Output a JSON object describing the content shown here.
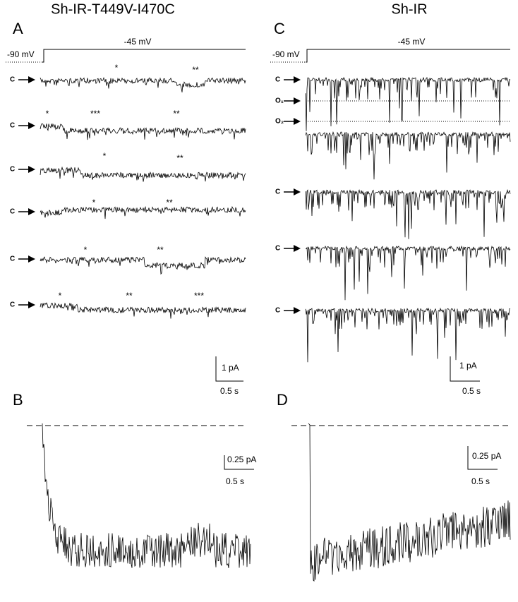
{
  "panels": {
    "A": {
      "label": "A",
      "title": "Sh-IR-T449V-I470C",
      "protocol": {
        "hold": "-90 mV",
        "step": "-45 mV"
      },
      "traces": [
        {
          "level": "C",
          "marks": [
            "*",
            "**"
          ]
        },
        {
          "level": "C",
          "marks": [
            "*",
            "***",
            "**"
          ]
        },
        {
          "level": "C",
          "marks": [
            "*",
            "**"
          ]
        },
        {
          "level": "C",
          "marks": [
            "*",
            "**"
          ]
        },
        {
          "level": "C",
          "marks": [
            "*",
            "**"
          ]
        },
        {
          "level": "C",
          "marks": [
            "*",
            "**",
            "***"
          ]
        }
      ],
      "scale": {
        "current": "1 pA",
        "time": "0.5 s"
      }
    },
    "B": {
      "label": "B",
      "scale": {
        "current": "0.25 pA",
        "time": "0.5 s"
      }
    },
    "C": {
      "label": "C",
      "title": "Sh-IR",
      "protocol": {
        "hold": "-90 mV",
        "step": "-45 mV"
      },
      "levels": [
        "C",
        "O₁",
        "O₂"
      ],
      "traces": [
        {
          "level": "C"
        },
        {
          "level": "C"
        },
        {
          "level": "C"
        }
      ],
      "scale": {
        "current": "1 pA",
        "time": "0.5 s"
      }
    },
    "D": {
      "label": "D",
      "scale": {
        "current": "0.25 pA",
        "time": "0.5 s"
      }
    }
  }
}
